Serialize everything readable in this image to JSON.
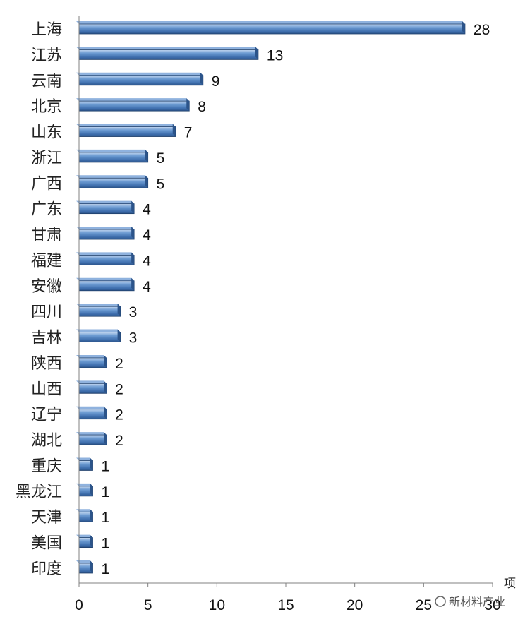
{
  "chart_data": {
    "type": "bar",
    "orientation": "horizontal",
    "categories": [
      "上海",
      "江苏",
      "云南",
      "北京",
      "山东",
      "浙江",
      "广西",
      "广东",
      "甘肃",
      "福建",
      "安徽",
      "四川",
      "吉林",
      "陕西",
      "山西",
      "辽宁",
      "湖北",
      "重庆",
      "黑龙江",
      "天津",
      "美国",
      "印度"
    ],
    "values": [
      28,
      13,
      9,
      8,
      7,
      5,
      5,
      4,
      4,
      4,
      4,
      3,
      3,
      2,
      2,
      2,
      2,
      1,
      1,
      1,
      1,
      1
    ],
    "xlim": [
      0,
      30
    ],
    "xticks": [
      0,
      5,
      10,
      15,
      20,
      25,
      30
    ],
    "xticks_display": [
      "0",
      "5",
      "10",
      "15",
      "20",
      "25",
      "30"
    ],
    "unit_label": "项",
    "bar_color": "#4f81bd",
    "grid": false
  },
  "watermark": "新材料产业"
}
